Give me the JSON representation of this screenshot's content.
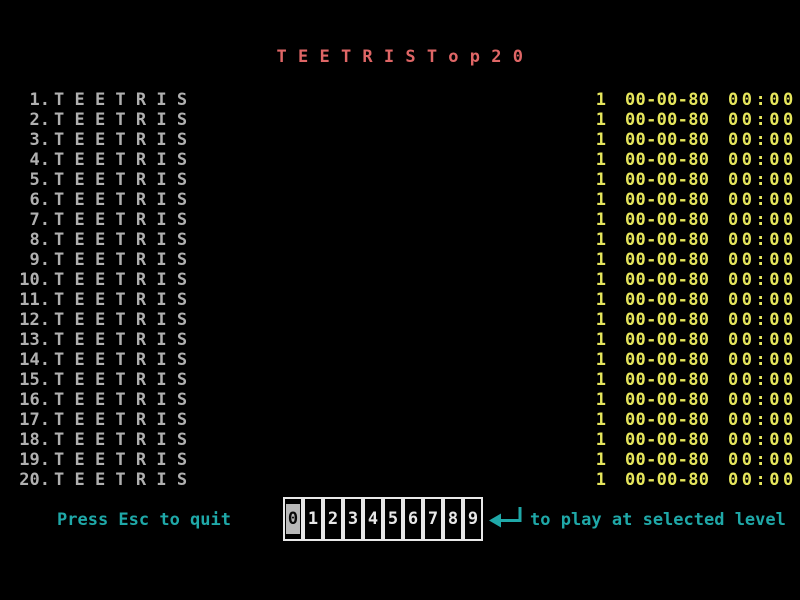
{
  "title": "T E E T R I S   T o p   2 0",
  "colors": {
    "background": "#000000",
    "title_red": "#df6666",
    "name_gray": "#b0b0b0",
    "value_yellow": "#e6e65c",
    "hint_teal": "#1fa8a8",
    "box_border": "#e8e8e8",
    "selected_level_bg": "#b9b9b9"
  },
  "scores": {
    "rows": [
      {
        "rank": "1.",
        "name": "T E E T R I S",
        "score": "1",
        "date": "00-00-80",
        "time": "00:00"
      },
      {
        "rank": "2.",
        "name": "T E E T R I S",
        "score": "1",
        "date": "00-00-80",
        "time": "00:00"
      },
      {
        "rank": "3.",
        "name": "T E E T R I S",
        "score": "1",
        "date": "00-00-80",
        "time": "00:00"
      },
      {
        "rank": "4.",
        "name": "T E E T R I S",
        "score": "1",
        "date": "00-00-80",
        "time": "00:00"
      },
      {
        "rank": "5.",
        "name": "T E E T R I S",
        "score": "1",
        "date": "00-00-80",
        "time": "00:00"
      },
      {
        "rank": "6.",
        "name": "T E E T R I S",
        "score": "1",
        "date": "00-00-80",
        "time": "00:00"
      },
      {
        "rank": "7.",
        "name": "T E E T R I S",
        "score": "1",
        "date": "00-00-80",
        "time": "00:00"
      },
      {
        "rank": "8.",
        "name": "T E E T R I S",
        "score": "1",
        "date": "00-00-80",
        "time": "00:00"
      },
      {
        "rank": "9.",
        "name": "T E E T R I S",
        "score": "1",
        "date": "00-00-80",
        "time": "00:00"
      },
      {
        "rank": "10.",
        "name": "T E E T R I S",
        "score": "1",
        "date": "00-00-80",
        "time": "00:00"
      },
      {
        "rank": "11.",
        "name": "T E E T R I S",
        "score": "1",
        "date": "00-00-80",
        "time": "00:00"
      },
      {
        "rank": "12.",
        "name": "T E E T R I S",
        "score": "1",
        "date": "00-00-80",
        "time": "00:00"
      },
      {
        "rank": "13.",
        "name": "T E E T R I S",
        "score": "1",
        "date": "00-00-80",
        "time": "00:00"
      },
      {
        "rank": "14.",
        "name": "T E E T R I S",
        "score": "1",
        "date": "00-00-80",
        "time": "00:00"
      },
      {
        "rank": "15.",
        "name": "T E E T R I S",
        "score": "1",
        "date": "00-00-80",
        "time": "00:00"
      },
      {
        "rank": "16.",
        "name": "T E E T R I S",
        "score": "1",
        "date": "00-00-80",
        "time": "00:00"
      },
      {
        "rank": "17.",
        "name": "T E E T R I S",
        "score": "1",
        "date": "00-00-80",
        "time": "00:00"
      },
      {
        "rank": "18.",
        "name": "T E E T R I S",
        "score": "1",
        "date": "00-00-80",
        "time": "00:00"
      },
      {
        "rank": "19.",
        "name": "T E E T R I S",
        "score": "1",
        "date": "00-00-80",
        "time": "00:00"
      },
      {
        "rank": "20.",
        "name": "T E E T R I S",
        "score": "1",
        "date": "00-00-80",
        "time": "00:00"
      }
    ]
  },
  "footer": {
    "quit_hint": "Press Esc to quit",
    "play_hint": "to play at selected level",
    "enter_icon": "enter-arrow-icon",
    "level_selector": {
      "levels": [
        "0",
        "1",
        "2",
        "3",
        "4",
        "5",
        "6",
        "7",
        "8",
        "9"
      ],
      "selected": "0"
    }
  }
}
